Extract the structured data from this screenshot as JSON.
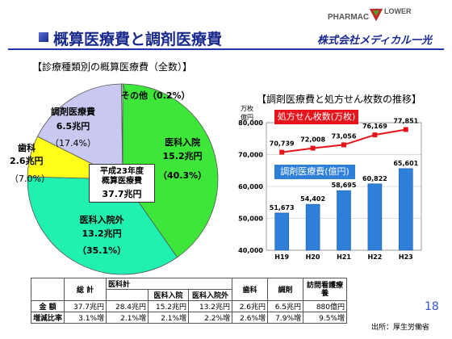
{
  "slide": {
    "title": "概算医療費と調剤医療費",
    "company": "株式会社メディカル一光",
    "logo_text": "PHARMAC",
    "logo_text2": "LOWER",
    "page_number": "18",
    "source": "出所：厚生労働省",
    "colors": {
      "title": "#1a2a8c",
      "accent_red": "#e8141c",
      "accent_blue": "#2e7fd8"
    }
  },
  "pie": {
    "heading": "【診療種類別の概算医療費（全数）】",
    "center_line1": "平成23年度",
    "center_line2": "概算医療費",
    "center_total": "37.7兆円"
  },
  "bar": {
    "heading": "【調剤医療費と処方せん枚数の推移】",
    "unit_line1": "万枚",
    "unit_line2": "億円",
    "line_legend": "処方せん枚数(万枚)",
    "bar_legend": "調剤医療費(億円)"
  },
  "chart_data": [
    {
      "type": "pie",
      "slices": [
        {
          "name": "医科入院",
          "amount": "15.2兆円",
          "share": "（40.3%）",
          "value": 40.3,
          "color": "#3ee63a"
        },
        {
          "name": "医科入院外",
          "amount": "13.2兆円",
          "share": "（35.1%）",
          "value": 35.1,
          "color": "#20f0b0"
        },
        {
          "name": "歯科",
          "amount": "2.6兆円",
          "share": "（7.0%）",
          "value": 7.0,
          "color": "#ffff1a"
        },
        {
          "name": "調剤医療費",
          "amount": "6.5兆円",
          "share": "（17.4%）",
          "value": 17.4,
          "color": "#c8c8f0"
        },
        {
          "name": "その他",
          "amount": "",
          "share": "（0.2%）",
          "value": 0.2,
          "color": "#ffffff"
        }
      ]
    },
    {
      "type": "bar",
      "categories": [
        "H19",
        "H20",
        "H21",
        "H22",
        "H23"
      ],
      "ylim": [
        40000,
        80000
      ],
      "yticks": [
        "40,000",
        "50,000",
        "60,000",
        "70,000",
        "80,000"
      ],
      "series": [
        {
          "name": "調剤医療費(億円)",
          "type": "bar",
          "values": [
            51673,
            54402,
            58695,
            60822,
            65601
          ],
          "labels": [
            "51,673",
            "54,402",
            "58,695",
            "60,822",
            "65,601"
          ],
          "color": "#2e7fd8"
        },
        {
          "name": "処方せん枚数(万枚)",
          "type": "line",
          "values": [
            70739,
            72008,
            73056,
            76169,
            77851
          ],
          "labels": [
            "70,739",
            "72,008",
            "73,056",
            "76,169",
            "77,851"
          ],
          "color": "#e8141c"
        }
      ]
    },
    {
      "type": "table",
      "header_top": [
        "",
        "総 計",
        "医科計",
        "",
        "",
        "歯科",
        "調剤",
        "訪問看護療養"
      ],
      "header_sub": [
        "医科入院",
        "医科入院外"
      ],
      "rows": [
        {
          "label": "金 額",
          "cells": [
            "37.7兆円",
            "28.4兆円",
            "15.2兆円",
            "13.2兆円",
            "2.6兆円",
            "6.5兆円",
            "880億円"
          ]
        },
        {
          "label": "増減比率",
          "cells": [
            "3.1%増",
            "2.1%増",
            "2.1%増",
            "2.2%増",
            "2.6%増",
            "7.9%増",
            "9.5%増"
          ]
        }
      ]
    }
  ]
}
